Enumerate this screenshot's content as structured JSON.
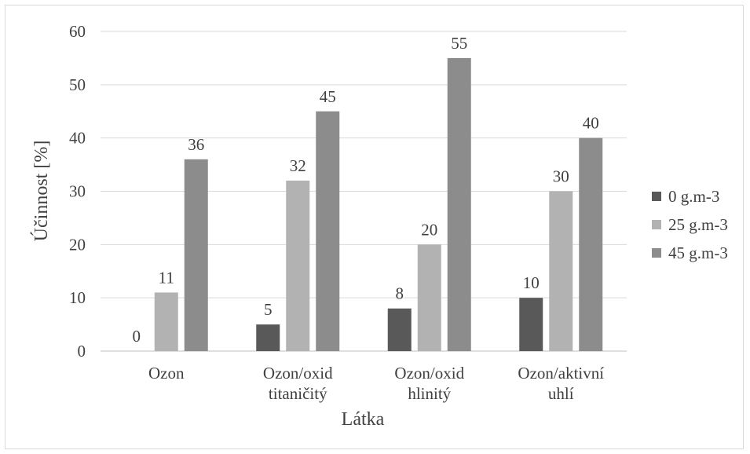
{
  "chart_data": {
    "type": "bar",
    "categories": [
      [
        "Ozon"
      ],
      [
        "Ozon/oxid",
        "titaničitý"
      ],
      [
        "Ozon/oxid",
        "hlinitý"
      ],
      [
        "Ozon/aktivní",
        "uhlí"
      ]
    ],
    "series": [
      {
        "name": "0 g.m-3",
        "values": [
          0,
          5,
          8,
          10
        ],
        "color": "#595959"
      },
      {
        "name": "25 g.m-3",
        "values": [
          11,
          32,
          20,
          30
        ],
        "color": "#b2b2b2"
      },
      {
        "name": "45 g.m-3",
        "values": [
          36,
          45,
          55,
          40
        ],
        "color": "#8c8c8c"
      }
    ],
    "xlabel": "Látka",
    "ylabel": "Účinnost [%]",
    "ylim": [
      0,
      60
    ],
    "yticks": [
      0,
      10,
      20,
      30,
      40,
      50,
      60
    ],
    "grid": true,
    "legend": "right"
  }
}
